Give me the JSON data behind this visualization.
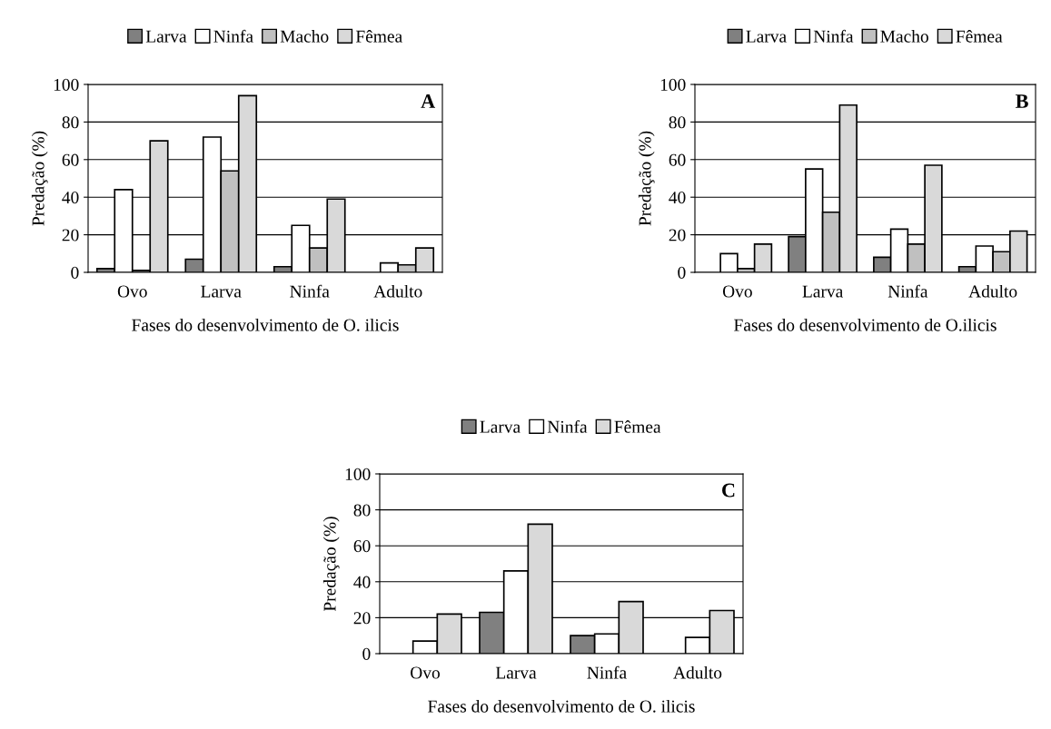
{
  "chart_data": [
    {
      "type": "bar",
      "categories": [
        "Ovo",
        "Larva",
        "Ninfa",
        "Adulto"
      ],
      "xlabel": "Fases do desenvolvimento de O. ilicis",
      "ylabel": "Predação (%)",
      "ylim": [
        0,
        100
      ],
      "yticks": [
        0,
        20,
        40,
        60,
        80,
        100
      ],
      "grid": "y",
      "legend": "top",
      "annotations": [
        "A"
      ],
      "series": [
        {
          "name": "Larva",
          "color": "#808080",
          "values": [
            2,
            7,
            3,
            0
          ]
        },
        {
          "name": "Ninfa",
          "color": "#ffffff",
          "values": [
            44,
            72,
            25,
            5
          ]
        },
        {
          "name": "Macho",
          "color": "#c0c0c0",
          "values": [
            1,
            54,
            13,
            4
          ]
        },
        {
          "name": "Fêmea",
          "color": "#d9d9d9",
          "values": [
            70,
            94,
            39,
            13
          ]
        }
      ]
    },
    {
      "type": "bar",
      "categories": [
        "Ovo",
        "Larva",
        "Ninfa",
        "Adulto"
      ],
      "xlabel": "Fases do desenvolvimento de O.ilicis",
      "ylabel": "Predação (%)",
      "ylim": [
        0,
        100
      ],
      "yticks": [
        0,
        20,
        40,
        60,
        80,
        100
      ],
      "grid": "y",
      "legend": "top",
      "annotations": [
        "B"
      ],
      "series": [
        {
          "name": "Larva",
          "color": "#808080",
          "values": [
            0,
            19,
            8,
            3
          ]
        },
        {
          "name": "Ninfa",
          "color": "#ffffff",
          "values": [
            10,
            55,
            23,
            14
          ]
        },
        {
          "name": "Macho",
          "color": "#c0c0c0",
          "values": [
            2,
            32,
            15,
            11
          ]
        },
        {
          "name": "Fêmea",
          "color": "#d9d9d9",
          "values": [
            15,
            89,
            57,
            22
          ]
        }
      ]
    },
    {
      "type": "bar",
      "categories": [
        "Ovo",
        "Larva",
        "Ninfa",
        "Adulto"
      ],
      "xlabel": "Fases do desenvolvimento de O. ilicis",
      "ylabel": "Predação (%)",
      "ylim": [
        0,
        100
      ],
      "yticks": [
        0,
        20,
        40,
        60,
        80,
        100
      ],
      "grid": "y",
      "legend": "top",
      "annotations": [
        "C"
      ],
      "series": [
        {
          "name": "Larva",
          "color": "#808080",
          "values": [
            0,
            23,
            10,
            0
          ]
        },
        {
          "name": "Ninfa",
          "color": "#ffffff",
          "values": [
            7,
            46,
            11,
            9
          ]
        },
        {
          "name": "Fêmea",
          "color": "#d9d9d9",
          "values": [
            22,
            72,
            29,
            24
          ]
        }
      ]
    }
  ]
}
